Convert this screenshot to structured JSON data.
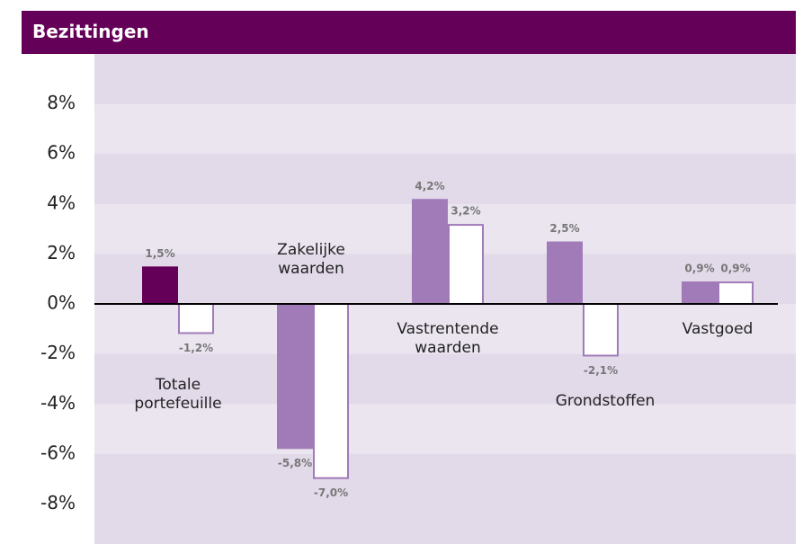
{
  "chart_data": {
    "type": "bar",
    "title": "Bezittingen",
    "categories": [
      "Totale portefeuille",
      "Zakelijke waarden",
      "Vastrentende waarden",
      "Grondstoffen",
      "Vastgoed"
    ],
    "series": [
      {
        "colors": [
          "#650059",
          "#a07bb8",
          "#a07bb8",
          "#a07bb8",
          "#a07bb8"
        ],
        "values": [
          1.5,
          -5.8,
          4.2,
          2.5,
          0.9
        ],
        "value_labels": [
          "1,5%",
          "-5,8%",
          "4,2%",
          "2,5%",
          "0,9%"
        ]
      },
      {
        "color": "#a07bb8",
        "values": [
          -1.2,
          -7.0,
          3.2,
          -2.1,
          0.9
        ],
        "value_labels": [
          "-1,2%",
          "-7,0%",
          "3,2%",
          "-2,1%",
          "0,9%"
        ]
      }
    ],
    "ylim": [
      -9.6,
      10
    ],
    "yticks": [
      {
        "value": -8,
        "label": "-8%"
      },
      {
        "value": -6,
        "label": "-6%"
      },
      {
        "value": -4,
        "label": "-4%"
      },
      {
        "value": -2,
        "label": "-2%"
      },
      {
        "value": 0,
        "label": "0%"
      },
      {
        "value": 2,
        "label": "2%"
      },
      {
        "value": 4,
        "label": "4%"
      },
      {
        "value": 6,
        "label": "6%"
      },
      {
        "value": 8,
        "label": "8%"
      }
    ]
  }
}
